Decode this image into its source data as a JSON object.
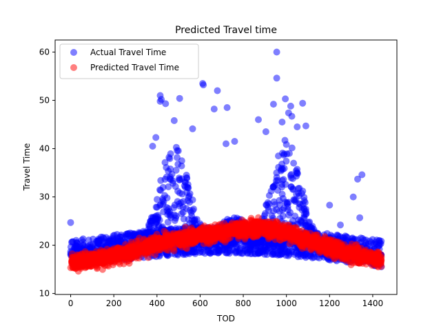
{
  "chart_data": {
    "type": "scatter",
    "title": "Predicted Travel time",
    "xlabel": "TOD",
    "ylabel": "Travel Time",
    "xlim": [
      -72,
      1512
    ],
    "ylim": [
      9.8,
      62.5
    ],
    "xticks": [
      0,
      200,
      400,
      600,
      800,
      1000,
      1200,
      1400
    ],
    "yticks": [
      10,
      20,
      30,
      40,
      50,
      60
    ],
    "grid": false,
    "legend_position": "top-left",
    "series": [
      {
        "name": "Actual Travel Time",
        "color": "#0000ff",
        "alpha": 0.5,
        "pattern": "dense band 15-22 across TOD 0-1440, two peaks near TOD ~480 (to ~40) and ~1000 (to ~42), sparse outliers up to 60",
        "outliers": [
          [
            0,
            24.7
          ],
          [
            955,
            60.0
          ],
          [
            955,
            54.6
          ],
          [
            612,
            53.5
          ],
          [
            615,
            53.2
          ],
          [
            680,
            52.0
          ],
          [
            415,
            51.0
          ],
          [
            420,
            50.2
          ],
          [
            995,
            50.3
          ],
          [
            1020,
            48.8
          ],
          [
            1075,
            49.4
          ],
          [
            940,
            49.2
          ],
          [
            415,
            49.8
          ],
          [
            505,
            50.4
          ],
          [
            440,
            49.3
          ],
          [
            725,
            48.5
          ],
          [
            665,
            48.2
          ],
          [
            1010,
            47.4
          ],
          [
            1025,
            46.7
          ],
          [
            870,
            46.0
          ],
          [
            980,
            45.5
          ],
          [
            480,
            45.8
          ],
          [
            1090,
            44.7
          ],
          [
            1050,
            44.5
          ],
          [
            565,
            44.1
          ],
          [
            905,
            43.5
          ],
          [
            395,
            42.3
          ],
          [
            380,
            40.5
          ],
          [
            760,
            41.5
          ],
          [
            720,
            41.0
          ],
          [
            1200,
            28.3
          ],
          [
            1250,
            24.2
          ],
          [
            1310,
            30.0
          ],
          [
            1330,
            33.7
          ],
          [
            1350,
            34.6
          ],
          [
            1340,
            25.7
          ]
        ]
      },
      {
        "name": "Predicted Travel Time",
        "color": "#ff0000",
        "alpha": 0.5,
        "pattern": "smooth arch from ~16 at TOD 0 to ~24 around TOD 800-900, back to ~17 at TOD 1440, band width ~6",
        "curve": [
          [
            0,
            16.3
          ],
          [
            100,
            16.9
          ],
          [
            200,
            17.7
          ],
          [
            300,
            19.0
          ],
          [
            400,
            20.3
          ],
          [
            500,
            21.3
          ],
          [
            600,
            22.0
          ],
          [
            700,
            22.6
          ],
          [
            800,
            23.3
          ],
          [
            900,
            23.6
          ],
          [
            1000,
            22.6
          ],
          [
            1100,
            21.0
          ],
          [
            1200,
            19.5
          ],
          [
            1300,
            18.2
          ],
          [
            1440,
            17.0
          ]
        ]
      }
    ]
  }
}
